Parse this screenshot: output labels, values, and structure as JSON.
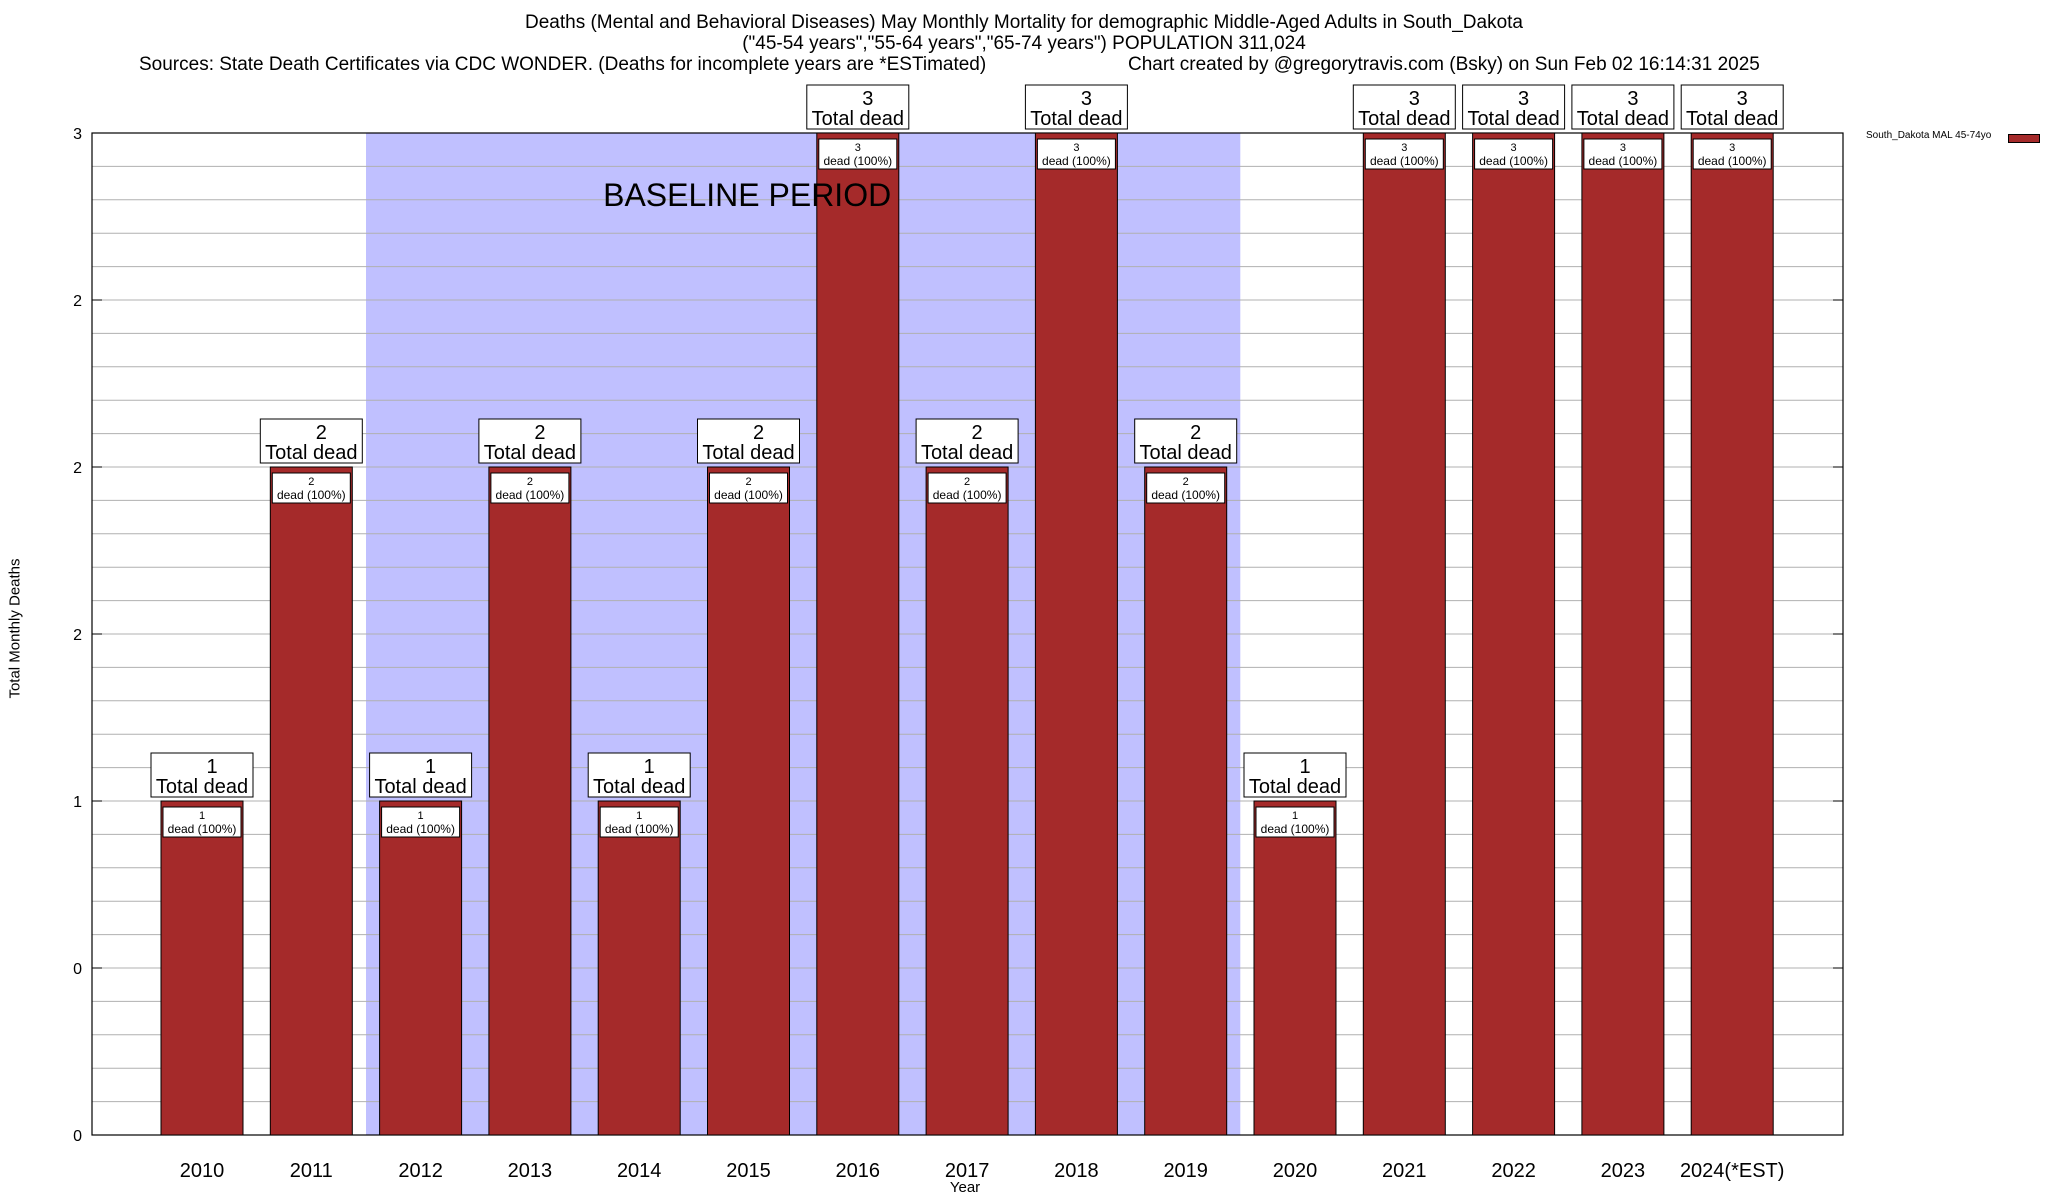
{
  "title": {
    "line1": "Deaths (Mental and Behavioral Diseases) May Monthly Mortality for demographic Middle-Aged Adults in South_Dakota",
    "line2": "(\"45-54 years\",\"55-64 years\",\"65-74 years\") POPULATION 311,024",
    "sources": "Sources: State Death Certificates via CDC WONDER. (Deaths for incomplete years are *ESTimated)",
    "credit": "Chart created by @gregorytravis.com (Bsky) on Sun Feb 02 16:14:31 2025"
  },
  "colors": {
    "bar": "#a52a2a",
    "baseline_band": "#c0c0ff",
    "grid": "#b0b0b0"
  },
  "chart_data": {
    "type": "bar",
    "xlabel": "Year",
    "ylabel": "Total Monthly Deaths",
    "ylim": [
      0,
      3
    ],
    "ytick_values": [
      0,
      0.5,
      1,
      1.5,
      2,
      2.5,
      3
    ],
    "ytick_labels": [
      "0",
      "0",
      "1",
      "2",
      "2",
      "2",
      "3"
    ],
    "grid": true,
    "legend_position": "top-right",
    "categories": [
      "2010",
      "2011",
      "2012",
      "2013",
      "2014",
      "2015",
      "2016",
      "2017",
      "2018",
      "2019",
      "2020",
      "2021",
      "2022",
      "2023",
      "2024(*EST)"
    ],
    "series": [
      {
        "name": "South_Dakota MAL 45-74yo",
        "values": [
          1,
          2,
          1,
          2,
          1,
          2,
          3,
          2,
          3,
          2,
          1,
          3,
          3,
          3,
          3
        ]
      }
    ],
    "total_labels": [
      "1\nTotal dead",
      "2\nTotal dead",
      "1\nTotal dead",
      "2\nTotal dead",
      "1\nTotal dead",
      "2\nTotal dead",
      "3\nTotal dead",
      "2\nTotal dead",
      "3\nTotal dead",
      "2\nTotal dead",
      "1\nTotal dead",
      "3\nTotal dead",
      "3\nTotal dead",
      "3\nTotal dead",
      "3\nTotal dead"
    ],
    "segment_labels": [
      "1\ndead (100%)",
      "2\ndead (100%)",
      "1\ndead (100%)",
      "2\ndead (100%)",
      "1\ndead (100%)",
      "2\ndead (100%)",
      "3\ndead (100%)",
      "2\ndead (100%)",
      "3\ndead (100%)",
      "2\ndead (100%)",
      "1\ndead (100%)",
      "3\ndead (100%)",
      "3\ndead (100%)",
      "3\ndead (100%)",
      "3\ndead (100%)"
    ],
    "annotations": [
      {
        "text": "BASELINE PERIOD",
        "x_start": "2012",
        "x_end": "2019"
      }
    ]
  }
}
